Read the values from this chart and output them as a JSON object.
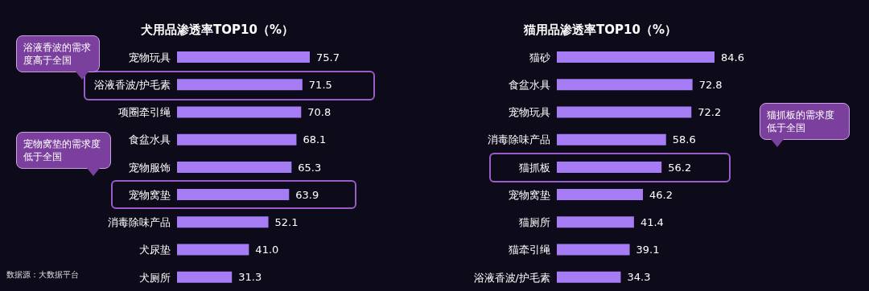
{
  "chart_data": [
    {
      "type": "bar",
      "orientation": "horizontal",
      "title": "犬用品渗透率TOP10（%）",
      "categories": [
        "宠物玩具",
        "浴液香波/护毛素",
        "项圈牵引绳",
        "食盆水具",
        "宠物服饰",
        "宠物窝垫",
        "消毒除味产品",
        "犬尿垫",
        "犬厕所"
      ],
      "values": [
        75.7,
        71.5,
        70.8,
        68.1,
        65.3,
        63.9,
        52.1,
        41.0,
        31.3
      ],
      "color": "#a57cf4",
      "data_labels": true,
      "value_labels": [
        "75.7",
        "71.5",
        "70.8",
        "68.1",
        "65.3",
        "63.9",
        "52.1",
        "41.0",
        "31.3"
      ],
      "annotations": [
        "浴液香波的需求度高于全国",
        "宠物窝垫的需求度低于全国",
        "数据源：大数据平台"
      ]
    },
    {
      "type": "bar",
      "orientation": "horizontal",
      "title": "猫用品渗透率TOP10（%）",
      "categories": [
        "猫砂",
        "食盆水具",
        "宠物玩具",
        "消毒除味产品",
        "猫抓板",
        "宠物窝垫",
        "猫厕所",
        "猫牵引绳",
        "浴液香波/护毛素"
      ],
      "values": [
        84.6,
        72.8,
        72.2,
        58.6,
        56.2,
        46.2,
        41.4,
        39.1,
        34.3
      ],
      "color": "#a57cf4",
      "data_labels": true,
      "value_labels": [
        "84.6",
        "72.8",
        "72.2",
        "58.6",
        "56.2",
        "46.2",
        "41.4",
        "39.1",
        "34.3"
      ],
      "annotations": [
        "猫抓板的需求度低于全国"
      ]
    }
  ]
}
